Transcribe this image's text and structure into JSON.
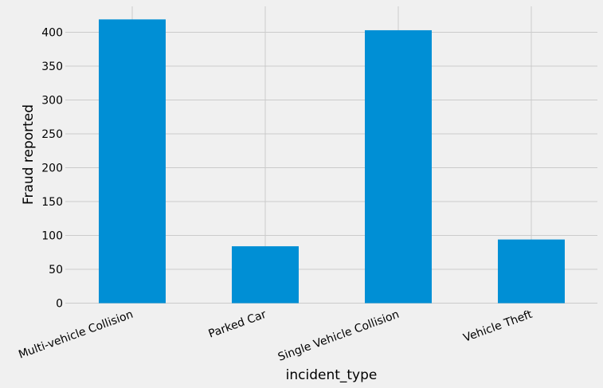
{
  "chart_data": {
    "type": "bar",
    "categories": [
      "Multi-vehicle Collision",
      "Parked Car",
      "Single Vehicle Collision",
      "Vehicle Theft"
    ],
    "values": [
      419,
      84,
      403,
      94
    ],
    "xlabel": "incident_type",
    "ylabel": "Fraud reported",
    "ylim": [
      0,
      435
    ],
    "yticks": [
      0,
      50,
      100,
      150,
      200,
      250,
      300,
      350,
      400
    ],
    "grid": true,
    "legend": "none",
    "colors": {
      "bar": "#008fd5",
      "background": "#f0f0f0",
      "grid": "#cbcbcb"
    }
  }
}
